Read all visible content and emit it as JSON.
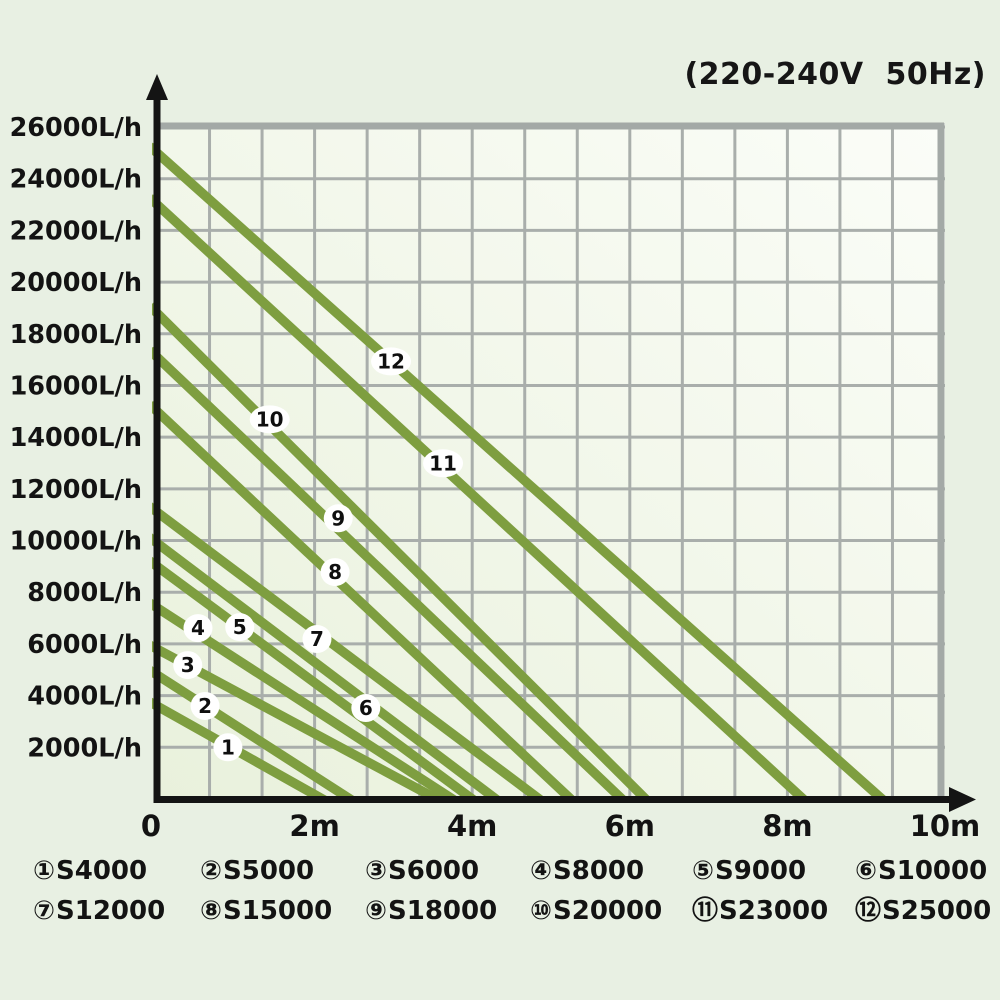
{
  "title": "(220-240V  50Hz)",
  "colors": {
    "page_bg": "#e8f0e3",
    "plot_bg_top_right": "#fbfdf8",
    "plot_bg_bottom_left": "#e9f1dc",
    "grid": "#a9aeab",
    "plot_border": "#a3a9a6",
    "axis": "#141414",
    "curve": "#7e9e40",
    "badge_fill": "#ffffff",
    "text": "#131313"
  },
  "y_axis": {
    "unit": "L/h",
    "min": 0,
    "max": 26000,
    "step": 2000,
    "labels": [
      "26000L/h",
      "24000L/h",
      "22000L/h",
      "20000L/h",
      "18000L/h",
      "16000L/h",
      "14000L/h",
      "12000L/h",
      "10000L/h",
      "8000L/h",
      "6000L/h",
      "4000L/h",
      "2000L/h"
    ],
    "label_values": [
      26000,
      24000,
      22000,
      20000,
      18000,
      16000,
      14000,
      12000,
      10000,
      8000,
      6000,
      4000,
      2000
    ]
  },
  "x_axis": {
    "unit": "m",
    "min": 0,
    "max": 10,
    "labels": [
      "0",
      "2m",
      "4m",
      "6m",
      "8m",
      "10m"
    ],
    "label_values": [
      0,
      2,
      4,
      6,
      8,
      10
    ]
  },
  "chart_data": {
    "type": "line",
    "title": "(220-240V  50Hz)",
    "xlabel": "",
    "ylabel": "",
    "xlim": [
      0,
      10
    ],
    "ylim": [
      0,
      26000
    ],
    "grid": true,
    "legend_position": "bottom",
    "x_units": "m (head)",
    "y_units": "L/h (flow)",
    "series": [
      {
        "label": "1",
        "name": "S4000",
        "points": [
          [
            0,
            3600
          ],
          [
            2.1,
            0
          ]
        ],
        "label_at": [
          0.9,
          2000
        ]
      },
      {
        "label": "2",
        "name": "S5000",
        "points": [
          [
            0,
            4800
          ],
          [
            2.45,
            0
          ]
        ],
        "label_at": [
          0.61,
          3600
        ]
      },
      {
        "label": "3",
        "name": "S6000",
        "points": [
          [
            0,
            5800
          ],
          [
            3.55,
            0
          ]
        ],
        "label_at": [
          0.39,
          5180
        ]
      },
      {
        "label": "4",
        "name": "S8000",
        "points": [
          [
            0,
            7400
          ],
          [
            3.75,
            0
          ]
        ],
        "label_at": [
          0.52,
          6610
        ]
      },
      {
        "label": "5",
        "name": "S9000",
        "points": [
          [
            0,
            9000
          ],
          [
            4.0,
            0
          ]
        ],
        "label_at": [
          1.05,
          6650
        ]
      },
      {
        "label": "6",
        "name": "S10000",
        "points": [
          [
            0,
            9900
          ],
          [
            4.3,
            0
          ]
        ],
        "label_at": [
          2.65,
          3520
        ]
      },
      {
        "label": "7",
        "name": "S12000",
        "points": [
          [
            0,
            11100
          ],
          [
            4.85,
            0
          ]
        ],
        "label_at": [
          2.03,
          6190
        ]
      },
      {
        "label": "8",
        "name": "S15000",
        "points": [
          [
            0,
            15000
          ],
          [
            5.25,
            0
          ]
        ],
        "label_at": [
          2.26,
          8780
        ]
      },
      {
        "label": "9",
        "name": "S18000",
        "points": [
          [
            0,
            17100
          ],
          [
            5.9,
            0
          ]
        ],
        "label_at": [
          2.3,
          10860
        ]
      },
      {
        "label": "10",
        "name": "S20000",
        "points": [
          [
            0,
            18800
          ],
          [
            6.2,
            0
          ]
        ],
        "label_at": [
          1.43,
          14690
        ]
      },
      {
        "label": "11",
        "name": "S23000",
        "points": [
          [
            0,
            23000
          ],
          [
            8.2,
            0
          ]
        ],
        "label_at": [
          3.63,
          12990
        ]
      },
      {
        "label": "12",
        "name": "S25000",
        "points": [
          [
            0,
            25000
          ],
          [
            9.2,
            0
          ]
        ],
        "label_at": [
          2.97,
          16930
        ]
      }
    ]
  },
  "legend": {
    "rows": [
      [
        {
          "symbol": "①",
          "name": "S4000"
        },
        {
          "symbol": "②",
          "name": "S5000"
        },
        {
          "symbol": "③",
          "name": "S6000"
        },
        {
          "symbol": "④",
          "name": "S8000"
        },
        {
          "symbol": "⑤",
          "name": "S9000"
        },
        {
          "symbol": "⑥",
          "name": "S10000"
        }
      ],
      [
        {
          "symbol": "⑦",
          "name": "S12000"
        },
        {
          "symbol": "⑧",
          "name": "S15000"
        },
        {
          "symbol": "⑨",
          "name": "S18000"
        },
        {
          "symbol": "⑩",
          "name": "S20000"
        },
        {
          "symbol": "⑪",
          "name": "S23000"
        },
        {
          "symbol": "⑫",
          "name": "S25000"
        }
      ]
    ]
  }
}
